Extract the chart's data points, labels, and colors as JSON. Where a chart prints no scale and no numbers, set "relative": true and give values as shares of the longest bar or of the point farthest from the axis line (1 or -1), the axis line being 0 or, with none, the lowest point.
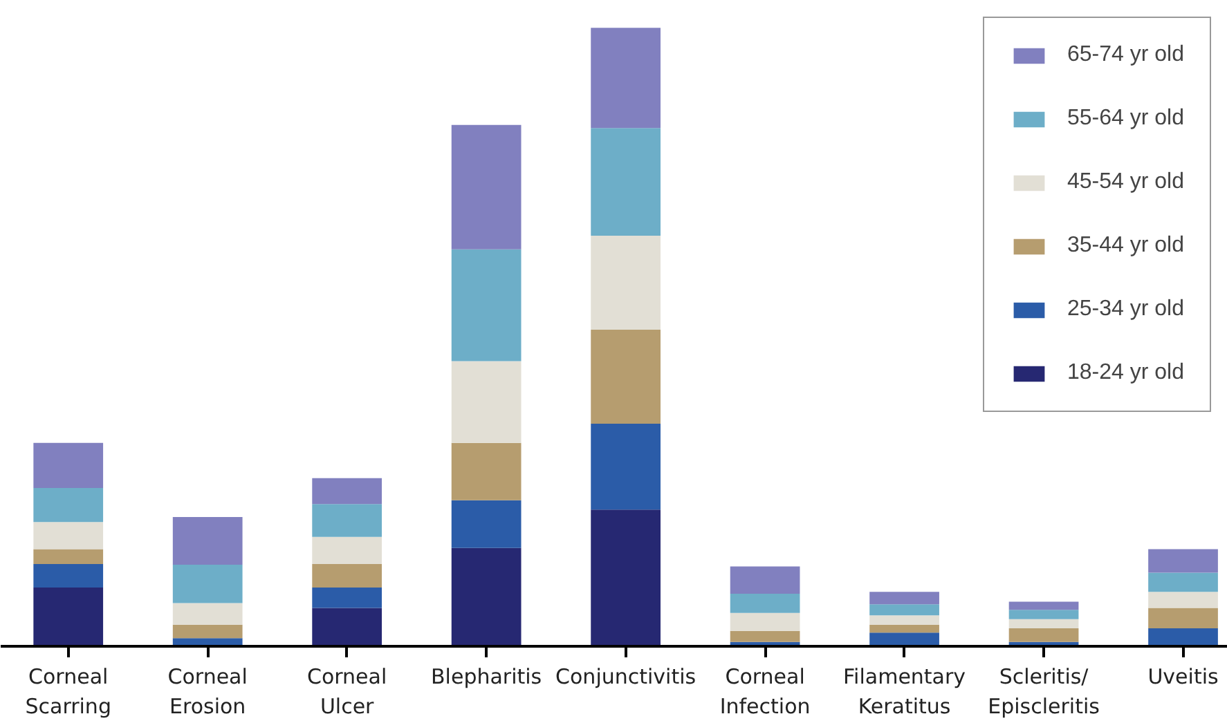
{
  "chart_data": {
    "type": "bar",
    "stacked": true,
    "relative": true,
    "legend": "top right",
    "grid": false,
    "categories": [
      "Corneal\nScarring",
      "Corneal\nErosion",
      "Corneal\nUlcer",
      "Blepharitis",
      "Conjunctivitis",
      "Corneal\nInfection",
      "Filamentary\nKeratitus",
      "Scleritis/\nEpiscleritis",
      "Uveitis"
    ],
    "series": [
      {
        "name": "18-24 yr old",
        "color": "#262872",
        "values": [
          0.095,
          0,
          0.062,
          0.159,
          0.221,
          0,
          0,
          0,
          0
        ]
      },
      {
        "name": "25-34 yr old",
        "color": "#2b5ca8",
        "values": [
          0.038,
          0.013,
          0.033,
          0.077,
          0.139,
          0.007,
          0.022,
          0.007,
          0.029
        ]
      },
      {
        "name": "35-44 yr old",
        "color": "#b69d6f",
        "values": [
          0.024,
          0.022,
          0.038,
          0.093,
          0.152,
          0.018,
          0.013,
          0.022,
          0.033
        ]
      },
      {
        "name": "45-54 yr old",
        "color": "#e2dfd5",
        "values": [
          0.044,
          0.035,
          0.044,
          0.132,
          0.152,
          0.029,
          0.015,
          0.015,
          0.026
        ]
      },
      {
        "name": "55-64 yr old",
        "color": "#6daec8",
        "values": [
          0.055,
          0.062,
          0.053,
          0.181,
          0.174,
          0.031,
          0.018,
          0.015,
          0.031
        ]
      },
      {
        "name": "65-74 yr old",
        "color": "#8180bf",
        "values": [
          0.073,
          0.077,
          0.042,
          0.201,
          0.162,
          0.044,
          0.02,
          0.013,
          0.038
        ]
      }
    ]
  }
}
